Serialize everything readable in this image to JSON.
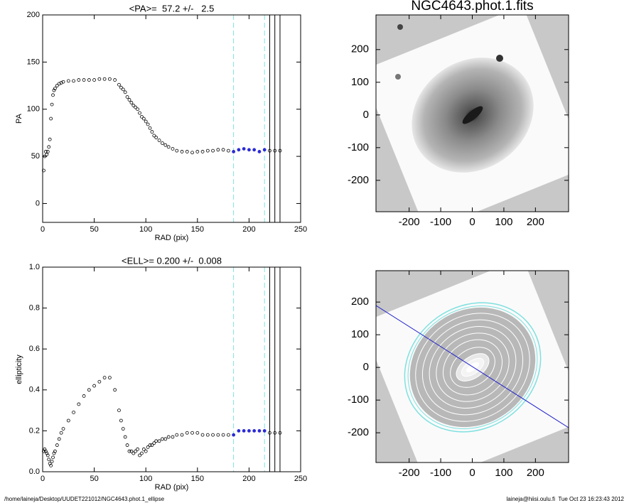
{
  "chart_data": [
    {
      "type": "scatter",
      "title": "<PA>=  57.2 +/-   2.5",
      "x_label": "RAD (pix)",
      "y_label": "PA",
      "x": [
        1,
        2,
        3,
        4,
        5,
        6,
        7,
        8,
        9,
        10,
        11,
        12,
        14,
        16,
        18,
        20,
        25,
        30,
        35,
        40,
        45,
        50,
        55,
        60,
        65,
        70,
        74,
        76,
        78,
        80,
        82,
        84,
        86,
        88,
        90,
        92,
        94,
        96,
        98,
        100,
        102,
        104,
        106,
        108,
        110,
        113,
        116,
        119,
        122,
        126,
        130,
        135,
        140,
        145,
        150,
        155,
        160,
        165,
        170,
        175,
        180,
        185,
        190,
        195,
        200,
        205,
        210,
        215,
        220,
        225,
        230
      ],
      "values": [
        35,
        50,
        55,
        52,
        55,
        60,
        68,
        90,
        105,
        115,
        120,
        122,
        125,
        127,
        128,
        129,
        130,
        130,
        131,
        131,
        131,
        131,
        132,
        132,
        132,
        131,
        126,
        123,
        121,
        118,
        113,
        110,
        107,
        104,
        102,
        100,
        96,
        92,
        90,
        87,
        84,
        80,
        76,
        72,
        70,
        67,
        64,
        62,
        60,
        58,
        56,
        55,
        55,
        54,
        55,
        55,
        56,
        56,
        57,
        57,
        56,
        55,
        57,
        58,
        57,
        57,
        55,
        57,
        56,
        56,
        56
      ],
      "color": "#000000",
      "fit_color": "#2b2bd6",
      "vlines": [
        {
          "value": 185,
          "color": "#80e0e0",
          "style": "dashed"
        },
        {
          "value": 215,
          "color": "#80e0e0",
          "style": "dashed"
        },
        {
          "value": 220,
          "color": "#000000",
          "style": "solid"
        },
        {
          "value": 225,
          "color": "#000000",
          "style": "solid"
        },
        {
          "value": 230,
          "color": "#000000",
          "style": "solid"
        }
      ],
      "xlim": [
        0,
        250
      ],
      "xticks": [
        0,
        50,
        100,
        150,
        200,
        250
      ],
      "ylim": [
        -20,
        200
      ],
      "yticks": [
        0,
        50,
        100,
        150,
        200
      ]
    },
    {
      "type": "scatter",
      "title": "<ELL>= 0.200 +/-  0.008",
      "x_label": "RAD (pix)",
      "y_label": "ellipticity",
      "x": [
        1,
        2,
        3,
        4,
        5,
        6,
        7,
        8,
        9,
        10,
        11,
        12,
        14,
        16,
        18,
        20,
        25,
        30,
        35,
        40,
        45,
        50,
        55,
        60,
        65,
        70,
        74,
        76,
        78,
        80,
        82,
        84,
        86,
        88,
        90,
        92,
        94,
        96,
        98,
        100,
        102,
        104,
        106,
        108,
        110,
        113,
        116,
        119,
        122,
        126,
        130,
        135,
        140,
        145,
        150,
        155,
        160,
        165,
        170,
        175,
        180,
        185,
        190,
        195,
        200,
        205,
        210,
        215,
        220,
        225,
        230
      ],
      "values": [
        0.1,
        0.11,
        0.1,
        0.09,
        0.08,
        0.06,
        0.04,
        0.03,
        0.05,
        0.07,
        0.09,
        0.1,
        0.13,
        0.16,
        0.19,
        0.21,
        0.25,
        0.29,
        0.33,
        0.37,
        0.4,
        0.42,
        0.44,
        0.46,
        0.46,
        0.4,
        0.3,
        0.25,
        0.21,
        0.17,
        0.13,
        0.1,
        0.1,
        0.09,
        0.1,
        0.11,
        0.08,
        0.09,
        0.11,
        0.1,
        0.12,
        0.13,
        0.13,
        0.14,
        0.15,
        0.15,
        0.16,
        0.16,
        0.17,
        0.17,
        0.18,
        0.18,
        0.19,
        0.19,
        0.19,
        0.18,
        0.18,
        0.18,
        0.18,
        0.18,
        0.18,
        0.18,
        0.2,
        0.2,
        0.2,
        0.2,
        0.2,
        0.2,
        0.19,
        0.19,
        0.19
      ],
      "color": "#000000",
      "fit_color": "#2b2bd6",
      "vlines": [
        {
          "value": 185,
          "color": "#80e0e0",
          "style": "dashed"
        },
        {
          "value": 215,
          "color": "#80e0e0",
          "style": "dashed"
        },
        {
          "value": 220,
          "color": "#000000",
          "style": "solid"
        },
        {
          "value": 225,
          "color": "#000000",
          "style": "solid"
        },
        {
          "value": 230,
          "color": "#000000",
          "style": "solid"
        }
      ],
      "xlim": [
        0,
        250
      ],
      "xticks": [
        0,
        50,
        100,
        150,
        200,
        250
      ],
      "ylim": [
        0,
        1
      ],
      "yticks": [
        {
          "value": 0,
          "label": "0.0"
        },
        {
          "value": 0.2,
          "label": "0.2"
        },
        {
          "value": 0.4,
          "label": "0.4"
        },
        {
          "value": 0.6,
          "label": "0.6"
        },
        {
          "value": 0.8,
          "label": "0.8"
        },
        {
          "value": 1,
          "label": "1.0"
        }
      ]
    },
    {
      "type": "image",
      "title": "NGC4643.phot.1.fits",
      "xlim": [
        -305,
        305
      ],
      "xticks": [
        -200,
        -100,
        0,
        100,
        200
      ],
      "ylim": [
        -296,
        306
      ],
      "yticks": [
        -200,
        -100,
        0,
        100,
        200
      ]
    },
    {
      "type": "image",
      "xlim": [
        -305,
        305
      ],
      "xticks": [
        -200,
        -100,
        0,
        100,
        200
      ],
      "ylim": [
        -291,
        296
      ],
      "yticks": [
        -200,
        -100,
        0,
        100,
        200
      ]
    }
  ],
  "footer": {
    "left": "/home/laineja/Desktop/UUDET221012/NGC4643.phot.1_ellipse",
    "right": "laineja@hiisi.oulu.fi  Tue Oct 23 16:23:43 2012"
  }
}
